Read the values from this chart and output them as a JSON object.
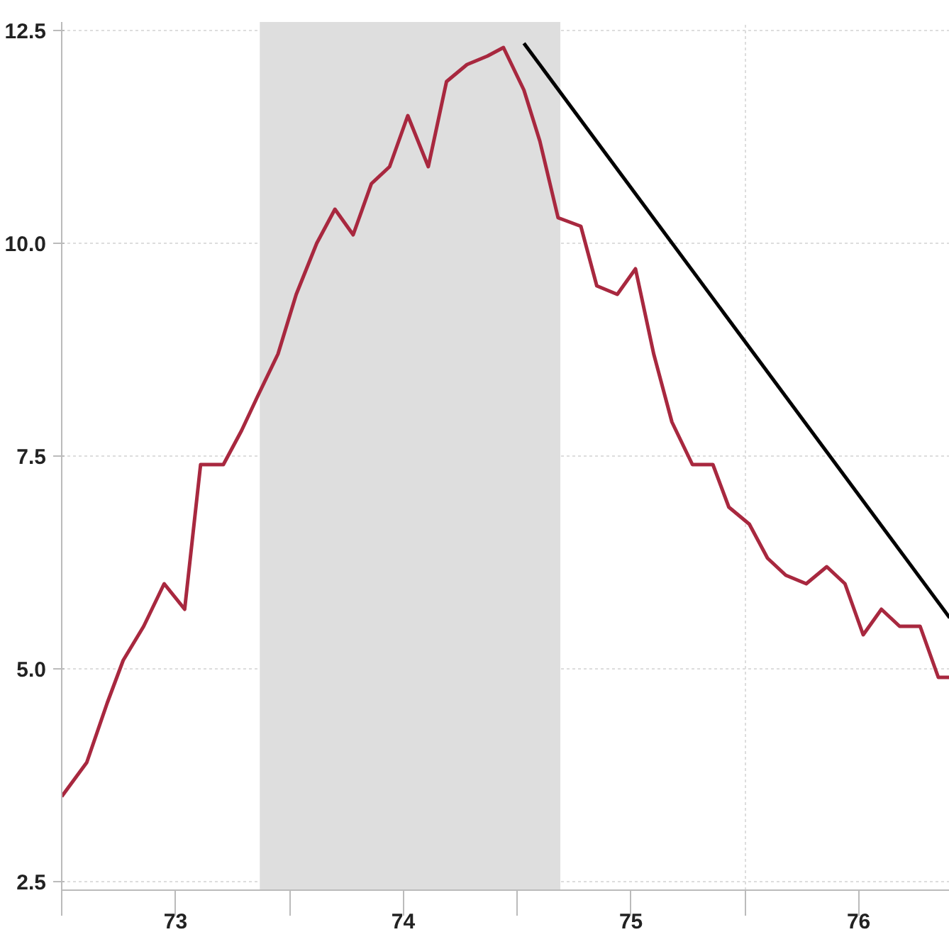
{
  "chart_data": {
    "type": "line",
    "series": [
      {
        "color": "#a8283f",
        "x": [
          72.5,
          72.61,
          72.7,
          72.77,
          72.86,
          72.95,
          73.04,
          73.11,
          73.21,
          73.29,
          73.36,
          73.45,
          73.53,
          73.62,
          73.7,
          73.78,
          73.86,
          73.94,
          74.02,
          74.11,
          74.19,
          74.28,
          74.37,
          74.44,
          74.53,
          74.6,
          74.68,
          74.78,
          74.85,
          74.94,
          75.02,
          75.1,
          75.18,
          75.27,
          75.36,
          75.43,
          75.52,
          75.6,
          75.68,
          75.77,
          75.86,
          75.94,
          76.02,
          76.1,
          76.18,
          76.27,
          76.35,
          76.4
        ],
        "values": [
          3.5,
          3.9,
          4.6,
          5.1,
          5.5,
          6.0,
          5.7,
          7.4,
          7.4,
          7.8,
          8.2,
          8.7,
          9.4,
          10.0,
          10.4,
          10.1,
          10.7,
          10.9,
          11.5,
          10.9,
          11.9,
          12.1,
          12.2,
          12.3,
          11.8,
          11.2,
          10.3,
          10.2,
          9.5,
          9.4,
          9.7,
          8.7,
          7.9,
          7.4,
          7.4,
          6.9,
          6.7,
          6.3,
          6.1,
          6.0,
          6.2,
          6.0,
          5.4,
          5.7,
          5.5,
          5.5,
          4.9,
          4.9
        ]
      },
      {
        "type": "line",
        "color": "#000000",
        "x": [
          74.53,
          76.4
        ],
        "values": [
          12.35,
          5.6
        ]
      }
    ],
    "xlim": [
      72.5,
      76.4
    ],
    "xticks": [
      {
        "value": 72.5,
        "label": null
      },
      73,
      {
        "value": 73.5,
        "label": null
      },
      74,
      {
        "value": 74.5,
        "label": null
      },
      75,
      {
        "value": 75.5,
        "label": null
      },
      76
    ],
    "ylim": [
      2.4,
      12.6
    ],
    "yticks": [
      {
        "value": 2.5,
        "label": "2.5"
      },
      {
        "value": 5,
        "label": "5.0"
      },
      {
        "value": 7.5,
        "label": "7.5"
      },
      {
        "value": 10,
        "label": "10.0"
      },
      {
        "value": 12.5,
        "label": "12.5"
      }
    ],
    "bands": [
      {
        "axis": "x",
        "from": 73.37,
        "to": 74.69,
        "color": "#dedede"
      }
    ],
    "grid": true,
    "line_style": "solid"
  }
}
